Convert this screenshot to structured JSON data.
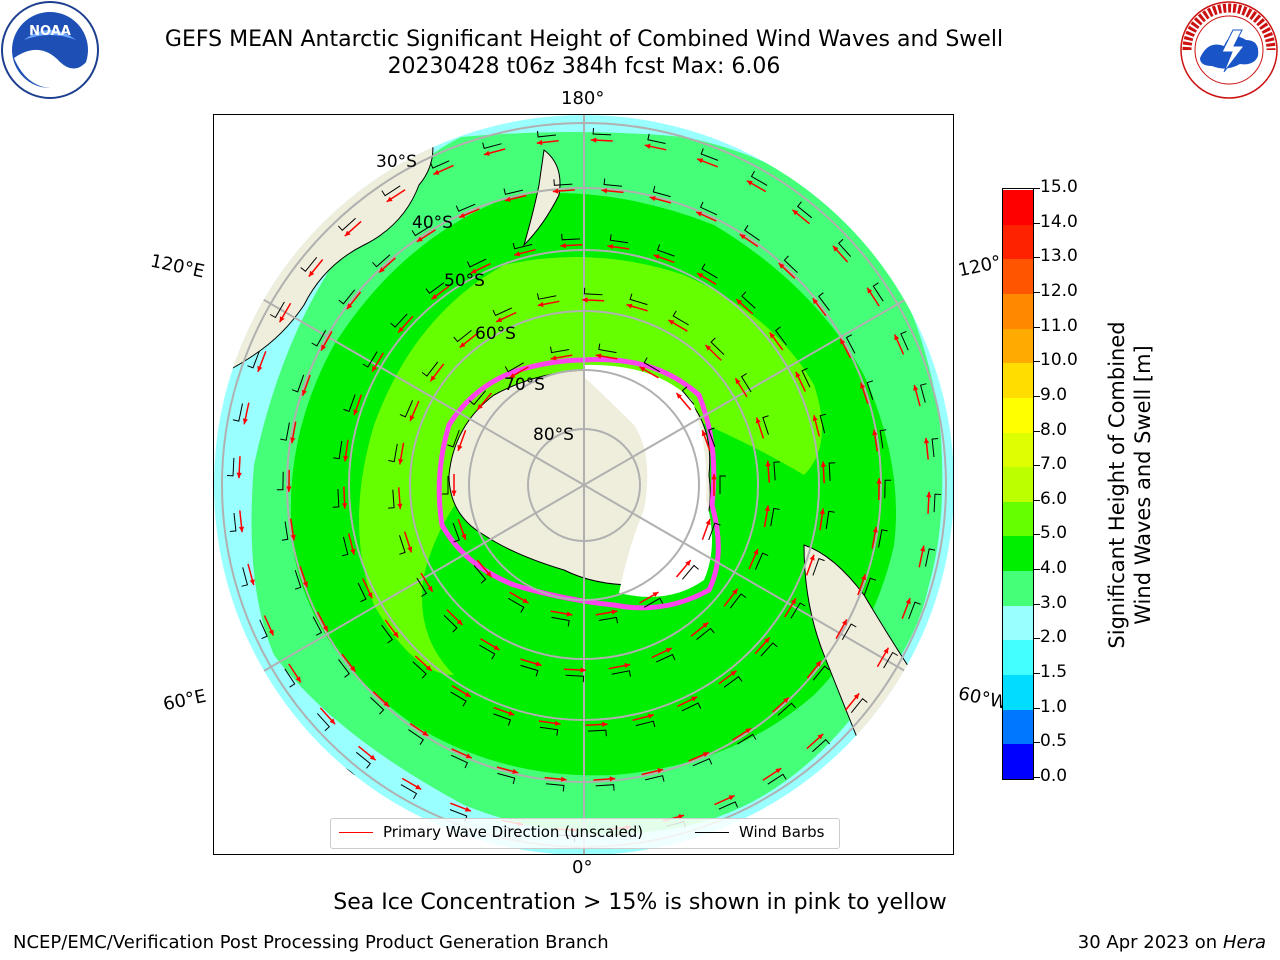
{
  "title": {
    "line1": "GEFS MEAN Antarctic Significant Height of Combined Wind Waves and Swell",
    "line2": "20230428 t06z 384h fcst   Max: 6.06"
  },
  "map": {
    "longitude_labels": [
      "180°",
      "120°E",
      "120°",
      "60°E",
      "60°W",
      "0°"
    ],
    "latitude_labels": [
      "30°S",
      "40°S",
      "50°S",
      "60°S",
      "70°S",
      "80°S"
    ],
    "colors": {
      "land": "#efeedd",
      "sea_ice": "#ffffff",
      "ice_edge": "#ff44ee",
      "grid": "#b0b0b0",
      "arrow": "#ff0000",
      "barb": "#000000"
    }
  },
  "legend": {
    "wave_direction_label": "Primary Wave Direction (unscaled)",
    "wind_barbs_label": "Wind Barbs",
    "wave_direction_color": "#ff0000",
    "wind_barbs_color": "#000000"
  },
  "colorbar": {
    "label_line1": "Significant Height of Combined",
    "label_line2": "Wind Waves and Swell [m]",
    "ticks": [
      "0.0",
      "0.5",
      "1.0",
      "1.5",
      "2.0",
      "3.0",
      "4.0",
      "5.0",
      "6.0",
      "7.0",
      "8.0",
      "9.0",
      "10.0",
      "11.0",
      "12.0",
      "13.0",
      "14.0",
      "15.0"
    ],
    "colors": [
      "#0000ff",
      "#0077ff",
      "#00ddff",
      "#44ffff",
      "#99ffff",
      "#44ff77",
      "#00ee00",
      "#66ff00",
      "#bbff00",
      "#ddff00",
      "#ffff00",
      "#ffdd00",
      "#ffaa00",
      "#ff8800",
      "#ff5500",
      "#ff2200",
      "#ff0000"
    ]
  },
  "sea_ice_note": "Sea Ice Concentration > 15% is shown in pink to yellow",
  "footer": {
    "left": "NCEP/EMC/Verification Post Processing Product Generation Branch",
    "right_date": "30 Apr 2023 on ",
    "right_system": "Hera"
  },
  "logos": {
    "noaa": "NOAA",
    "nws": "NATIONAL WEATHER SERVICE"
  }
}
